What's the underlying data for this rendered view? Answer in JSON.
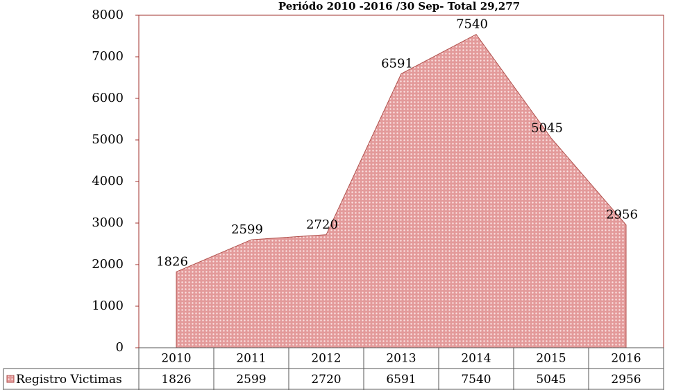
{
  "chart_data": {
    "type": "area",
    "title": "Periódo 2010 -2016 /30 Sep-   Total   29,277",
    "categories": [
      "2010",
      "2011",
      "2012",
      "2013",
      "2014",
      "2015",
      "2016"
    ],
    "series": [
      {
        "name": "Registro Victimas",
        "color": "#e8a4a4",
        "values": [
          1826,
          2599,
          2720,
          6591,
          7540,
          5045,
          2956
        ]
      }
    ],
    "ylim": [
      0,
      8000
    ],
    "yticks": [
      0,
      1000,
      2000,
      3000,
      4000,
      5000,
      6000,
      7000,
      8000
    ],
    "data_table": true
  }
}
